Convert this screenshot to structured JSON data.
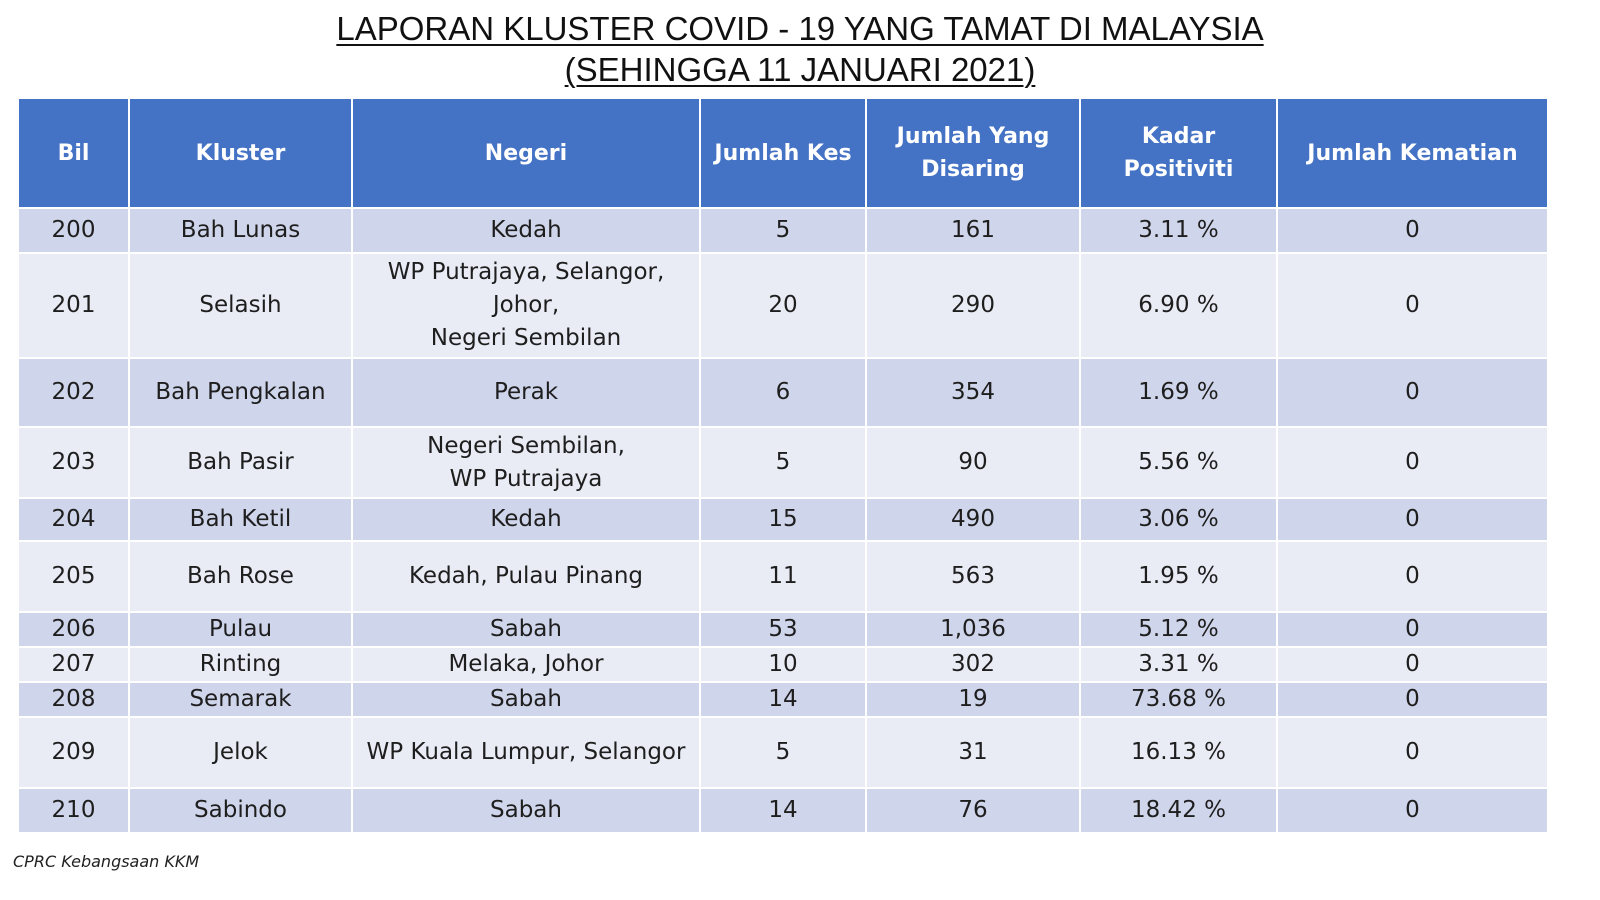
{
  "title": {
    "line1": "LAPORAN KLUSTER COVID - 19 YANG TAMAT DI MALAYSIA",
    "line2": "(SEHINGGA 11 JANUARI 2021)"
  },
  "table": {
    "headers": [
      "Bil",
      "Kluster",
      "Negeri",
      "Jumlah Kes",
      "Jumlah Yang Disaring",
      "Kadar Positiviti",
      "Jumlah Kematian"
    ],
    "rows": [
      {
        "bil": "200",
        "kluster": "Bah Lunas",
        "negeri": [
          "Kedah"
        ],
        "kes": "5",
        "disaring": "161",
        "positiviti": "3.11 %",
        "kematian": "0"
      },
      {
        "bil": "201",
        "kluster": "Selasih",
        "negeri": [
          "WP Putrajaya, Selangor, Johor,",
          "Negeri Sembilan"
        ],
        "kes": "20",
        "disaring": "290",
        "positiviti": "6.90 %",
        "kematian": "0"
      },
      {
        "bil": "202",
        "kluster": "Bah Pengkalan",
        "negeri": [
          "Perak"
        ],
        "kes": "6",
        "disaring": "354",
        "positiviti": "1.69 %",
        "kematian": "0"
      },
      {
        "bil": "203",
        "kluster": "Bah Pasir",
        "negeri": [
          "Negeri Sembilan,",
          "WP Putrajaya"
        ],
        "kes": "5",
        "disaring": "90",
        "positiviti": "5.56 %",
        "kematian": "0"
      },
      {
        "bil": "204",
        "kluster": "Bah Ketil",
        "negeri": [
          "Kedah"
        ],
        "kes": "15",
        "disaring": "490",
        "positiviti": "3.06 %",
        "kematian": "0"
      },
      {
        "bil": "205",
        "kluster": "Bah Rose",
        "negeri": [
          "Kedah, Pulau Pinang"
        ],
        "kes": "11",
        "disaring": "563",
        "positiviti": "1.95 %",
        "kematian": "0"
      },
      {
        "bil": "206",
        "kluster": "Pulau",
        "negeri": [
          "Sabah"
        ],
        "kes": "53",
        "disaring": "1,036",
        "positiviti": "5.12 %",
        "kematian": "0"
      },
      {
        "bil": "207",
        "kluster": "Rinting",
        "negeri": [
          "Melaka, Johor"
        ],
        "kes": "10",
        "disaring": "302",
        "positiviti": "3.31 %",
        "kematian": "0"
      },
      {
        "bil": "208",
        "kluster": "Semarak",
        "negeri": [
          "Sabah"
        ],
        "kes": "14",
        "disaring": "19",
        "positiviti": "73.68 %",
        "kematian": "0"
      },
      {
        "bil": "209",
        "kluster": "Jelok",
        "negeri": [
          "WP Kuala Lumpur, Selangor"
        ],
        "kes": "5",
        "disaring": "31",
        "positiviti": "16.13 %",
        "kematian": "0"
      },
      {
        "bil": "210",
        "kluster": "Sabindo",
        "negeri": [
          "Sabah"
        ],
        "kes": "14",
        "disaring": "76",
        "positiviti": "18.42 %",
        "kematian": "0"
      }
    ]
  },
  "footer": "CPRC Kebangsaan KKM",
  "colors": {
    "header_bg": "#4472c4",
    "row_dark": "#cfd5ea",
    "row_light": "#e9ebf5"
  }
}
